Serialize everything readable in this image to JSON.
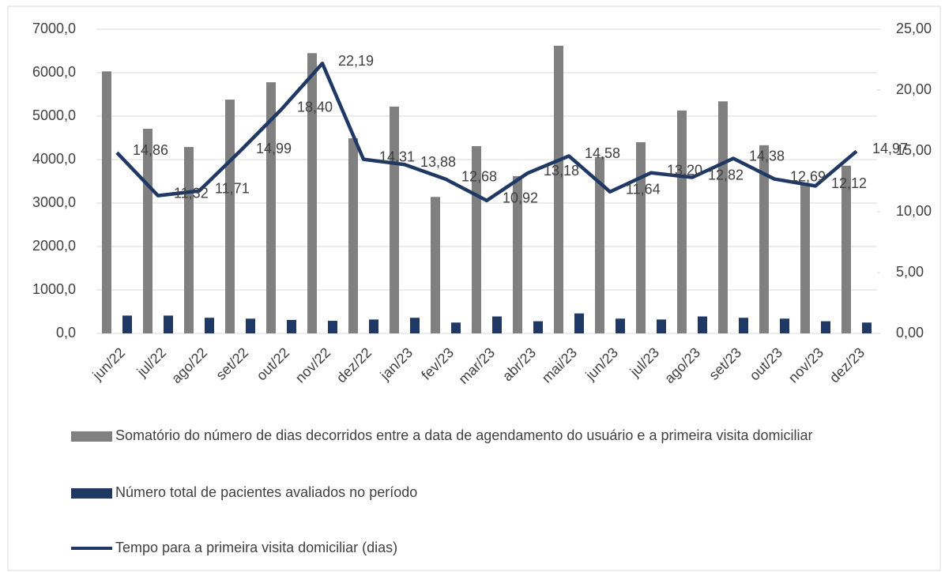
{
  "chart_data": {
    "type": "bar",
    "categories": [
      "jun/22",
      "jul/22",
      "ago/22",
      "set/22",
      "out/22",
      "nov/22",
      "dez/22",
      "jan/23",
      "fev/23",
      "mar/23",
      "abr/23",
      "mai/23",
      "jun/23",
      "jul/23",
      "ago/23",
      "set/23",
      "out/23",
      "nov/23",
      "dez/23"
    ],
    "series": [
      {
        "name": "Somatório do número de dias decorridos entre a data de agendamento do usuário e a primeira visita domiciliar",
        "color": "#808080",
        "type": "bar",
        "values": [
          6030,
          4710,
          4290,
          5380,
          5780,
          6450,
          4490,
          5220,
          3140,
          4310,
          3620,
          6620,
          4060,
          4400,
          5130,
          5340,
          4330,
          3420,
          3860
        ]
      },
      {
        "name": "Número total de pacientes avaliados no período",
        "color": "#1f3864",
        "type": "bar",
        "values": [
          410,
          410,
          360,
          340,
          310,
          290,
          320,
          360,
          250,
          390,
          280,
          460,
          340,
          320,
          390,
          360,
          340,
          280,
          250
        ]
      },
      {
        "name": "Tempo para a primeira visita domiciliar (dias)",
        "color": "#1f3864",
        "type": "line",
        "axis": "y2",
        "values": [
          14.86,
          11.32,
          11.71,
          14.99,
          18.4,
          22.19,
          14.31,
          13.88,
          12.68,
          10.92,
          13.18,
          14.58,
          11.64,
          13.2,
          12.82,
          14.38,
          12.69,
          12.12,
          14.97
        ],
        "value_labels": [
          "14,86",
          "11,32",
          "11,71",
          "14,99",
          "18,40",
          "22,19",
          "14,31",
          "13,88",
          "12,68",
          "10,92",
          "13,18",
          "14,58",
          "11,64",
          "13,20",
          "12,82",
          "14,38",
          "12,69",
          "12,12",
          "14,97"
        ]
      }
    ],
    "ylim": [
      0,
      7000
    ],
    "yticks": [
      {
        "value": 0,
        "label": "0,0"
      },
      {
        "value": 1000,
        "label": "1000,0"
      },
      {
        "value": 2000,
        "label": "2000,0"
      },
      {
        "value": 3000,
        "label": "3000,0"
      },
      {
        "value": 4000,
        "label": "4000,0"
      },
      {
        "value": 5000,
        "label": "5000,0"
      },
      {
        "value": 6000,
        "label": "6000,0"
      },
      {
        "value": 7000,
        "label": "7000,0"
      }
    ],
    "y2lim": [
      0,
      25
    ],
    "y2ticks": [
      {
        "value": 0,
        "label": "0,00"
      },
      {
        "value": 5,
        "label": "5,00"
      },
      {
        "value": 10,
        "label": "10,00"
      },
      {
        "value": 15,
        "label": "15,00"
      },
      {
        "value": 20,
        "label": "20,00"
      },
      {
        "value": 25,
        "label": "25,00"
      }
    ],
    "grid": true
  }
}
